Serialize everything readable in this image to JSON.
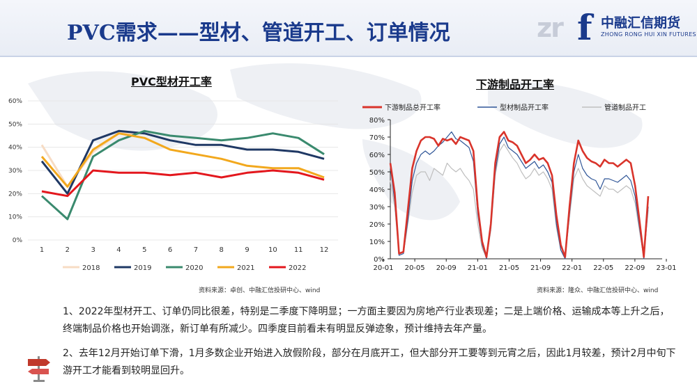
{
  "page": {
    "title": "PVC需求——型材、管道开工、订单情况",
    "logo_cn": "中融汇信期货",
    "logo_en": "ZHONG RONG HUI XIN FUTURES",
    "logo_mark": "zr",
    "logo_f": "f"
  },
  "colors": {
    "title_blue": "#1a3a8c",
    "s2018": "#f7dcc4",
    "s2019": "#1f3864",
    "s2020": "#3a8a6e",
    "s2021": "#f2a81d",
    "s2022": "#e3171d",
    "downstream_total": "#d9342b",
    "downstream_profile": "#2f5597",
    "downstream_pipe": "#bfbfbf"
  },
  "chart_data": [
    {
      "type": "line",
      "title": "PVC型材开工率",
      "x": [
        1,
        2,
        3,
        4,
        5,
        6,
        7,
        8,
        9,
        10,
        11,
        12
      ],
      "xticks": [
        "1",
        "2",
        "3",
        "4",
        "5",
        "6",
        "7",
        "8",
        "9",
        "10",
        "11",
        "12"
      ],
      "yticks": [
        "0%",
        "10%",
        "20%",
        "30%",
        "40%",
        "50%",
        "60%"
      ],
      "ylim": [
        0,
        60
      ],
      "legend_position": "bottom",
      "series": [
        {
          "name": "2018",
          "values": [
            41,
            23,
            38,
            46,
            46,
            null,
            null,
            null,
            null,
            null,
            null,
            null
          ]
        },
        {
          "name": "2019",
          "values": [
            34,
            20,
            43,
            47,
            46,
            43,
            41,
            41,
            39,
            39,
            38,
            35
          ]
        },
        {
          "name": "2020",
          "values": [
            19,
            9,
            36,
            43,
            47,
            45,
            44,
            43,
            44,
            46,
            44,
            37
          ]
        },
        {
          "name": "2021",
          "values": [
            36,
            23,
            39,
            46,
            44,
            39,
            37,
            35,
            32,
            31,
            31,
            27
          ]
        },
        {
          "name": "2022",
          "values": [
            21,
            19,
            30,
            29,
            29,
            28,
            29,
            27,
            29,
            30,
            29,
            26
          ]
        }
      ],
      "source": "资料来源：卓创、中融汇信投研中心、wind"
    },
    {
      "type": "line",
      "title": "下游制品开工率",
      "xticks": [
        "20-01",
        "20-05",
        "20-09",
        "21-01",
        "21-05",
        "21-09",
        "22-01",
        "22-05",
        "22-09",
        "23-01"
      ],
      "yticks": [
        "0%",
        "10%",
        "20%",
        "30%",
        "40%",
        "50%",
        "60%",
        "70%",
        "80%"
      ],
      "ylim": [
        0,
        80
      ],
      "legend_position": "top",
      "series": [
        {
          "name": "下游制品总开工率",
          "values": [
            55,
            38,
            3,
            4,
            28,
            52,
            62,
            68,
            70,
            70,
            69,
            65,
            69,
            68,
            69,
            66,
            70,
            69,
            68,
            62,
            30,
            10,
            1,
            20,
            55,
            70,
            73,
            68,
            67,
            65,
            60,
            55,
            57,
            60,
            57,
            58,
            55,
            48,
            25,
            8,
            1,
            30,
            55,
            68,
            62,
            58,
            56,
            55,
            53,
            57,
            55,
            55,
            53,
            55,
            57,
            55,
            42,
            22,
            1,
            36
          ]
        },
        {
          "name": "型材制品开工率",
          "values": [
            53,
            33,
            2,
            3,
            22,
            45,
            55,
            60,
            62,
            60,
            62,
            65,
            67,
            70,
            73,
            69,
            68,
            66,
            64,
            56,
            26,
            8,
            0,
            18,
            50,
            66,
            70,
            64,
            62,
            60,
            56,
            52,
            54,
            56,
            52,
            54,
            50,
            44,
            20,
            5,
            0,
            26,
            50,
            60,
            52,
            48,
            46,
            45,
            40,
            46,
            46,
            45,
            44,
            46,
            48,
            45,
            36,
            18,
            0,
            30
          ]
        },
        {
          "name": "管道制品开工",
          "values": [
            45,
            30,
            2,
            3,
            20,
            38,
            48,
            50,
            50,
            45,
            52,
            50,
            48,
            55,
            52,
            50,
            52,
            48,
            45,
            40,
            20,
            6,
            1,
            16,
            48,
            62,
            66,
            62,
            58,
            55,
            50,
            46,
            48,
            52,
            48,
            50,
            46,
            40,
            18,
            5,
            1,
            24,
            46,
            52,
            46,
            42,
            40,
            38,
            36,
            42,
            40,
            40,
            38,
            40,
            42,
            40,
            32,
            16,
            1,
            28
          ]
        }
      ],
      "source": "资料来源：隆众、中融汇信投研中心、wind"
    }
  ],
  "text": {
    "para1": "1、2022年型材开工、订单仍同比很差，特别是二季度下降明显；一方面主要因为房地产行业表现差；二是上端价格、运输成本等上升之后，终端制品价格也开始调涨，新订单有所减少。四季度目前看未有明显反弹迹象，预计维持去年产量。",
    "para2": "2、去年12月开始订单下滑，1月多数企业开始进入放假阶段，部分在月底开工，但大部分开工要等到元宵之后，因此1月较差，预计2月中旬下游开工才能看到较明显回升。"
  }
}
